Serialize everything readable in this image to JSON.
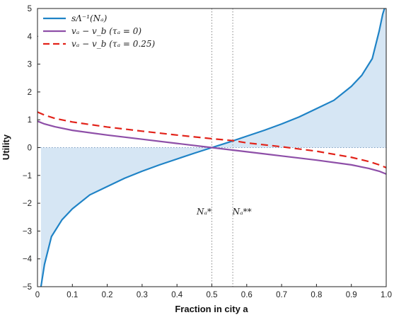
{
  "chart_data": {
    "type": "line",
    "xlabel": "Fraction in city a",
    "ylabel": "Utility",
    "xlim": [
      0,
      1
    ],
    "ylim": [
      -5,
      5
    ],
    "xticks": [
      "0",
      "0.1",
      "0.2",
      "0.3",
      "0.4",
      "0.5",
      "0.6",
      "0.7",
      "0.8",
      "0.9",
      "1.0"
    ],
    "yticks": [
      "5",
      "4",
      "3",
      "2",
      "1",
      "0",
      "−1",
      "−2",
      "−3",
      "−4",
      "−5"
    ],
    "colors": {
      "blue": "#1f83c6",
      "purple": "#8e4fa8",
      "red": "#e2231a",
      "fill": "#d6e6f4"
    },
    "series": [
      {
        "name": "sΛ⁻¹(Nₐ)",
        "style": "solid",
        "color": "#1f83c6",
        "x": [
          0.01,
          0.02,
          0.04,
          0.07,
          0.1,
          0.15,
          0.2,
          0.25,
          0.3,
          0.35,
          0.4,
          0.45,
          0.5,
          0.55,
          0.6,
          0.65,
          0.7,
          0.75,
          0.8,
          0.85,
          0.9,
          0.93,
          0.96,
          0.98,
          0.99,
          0.995
        ],
        "y": [
          -5.0,
          -4.2,
          -3.2,
          -2.6,
          -2.2,
          -1.7,
          -1.4,
          -1.1,
          -0.85,
          -0.62,
          -0.41,
          -0.2,
          0.0,
          0.2,
          0.41,
          0.62,
          0.85,
          1.1,
          1.4,
          1.7,
          2.2,
          2.6,
          3.2,
          4.2,
          4.8,
          5.0
        ]
      },
      {
        "name": "vₐ − v_b (τₐ = 0)",
        "style": "solid",
        "color": "#8e4fa8",
        "x": [
          0,
          0.02,
          0.05,
          0.1,
          0.2,
          0.3,
          0.4,
          0.5,
          0.6,
          0.7,
          0.8,
          0.9,
          0.95,
          0.98,
          1.0
        ],
        "y": [
          0.95,
          0.85,
          0.75,
          0.62,
          0.45,
          0.3,
          0.15,
          0.0,
          -0.15,
          -0.3,
          -0.45,
          -0.62,
          -0.75,
          -0.85,
          -0.95
        ]
      },
      {
        "name": "vₐ − v_b (τₐ = 0.25)",
        "style": "dashed",
        "color": "#e2231a",
        "x": [
          0,
          0.02,
          0.05,
          0.1,
          0.2,
          0.3,
          0.4,
          0.5,
          0.56,
          0.6,
          0.7,
          0.8,
          0.9,
          0.95,
          0.98,
          1.0
        ],
        "y": [
          1.28,
          1.17,
          1.05,
          0.92,
          0.74,
          0.59,
          0.45,
          0.32,
          0.25,
          0.17,
          0.03,
          -0.13,
          -0.35,
          -0.5,
          -0.62,
          -0.72
        ]
      }
    ],
    "annotations": [
      {
        "text": "Nₐ*",
        "x": 0.5
      },
      {
        "text": "Nₐ**",
        "x": 0.56
      }
    ],
    "legend": "top-left",
    "grid": false
  }
}
